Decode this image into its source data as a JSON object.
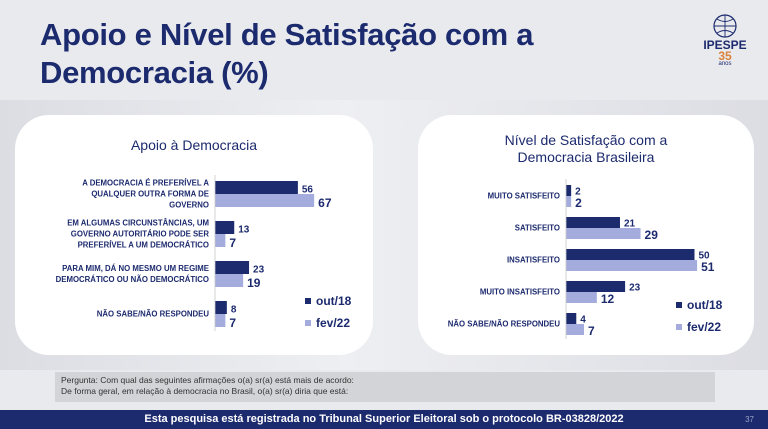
{
  "header": {
    "title_line1": "Apoio e Nível de Satisfação com a",
    "title_line2": "Democracia (%)"
  },
  "logo": {
    "text": "IPESPE",
    "number": "35",
    "sub": "anos"
  },
  "colors": {
    "series1": "#1c2a6e",
    "series2": "#a3acdc",
    "title": "#1c2a6e"
  },
  "chart_data": [
    {
      "type": "bar",
      "orientation": "horizontal",
      "title": "Apoio à Democracia",
      "categories": [
        [
          "A DEMOCRACIA É PREFERÍVEL A",
          "QUALQUER OUTRA FORMA DE",
          "GOVERNO"
        ],
        [
          "EM ALGUMAS CIRCUNSTÂNCIAS, UM",
          "GOVERNO AUTORITÁRIO PODE SER",
          "PREFERÍVEL A UM DEMOCRÁTICO"
        ],
        [
          "PARA MIM, DÁ NO MESMO UM REGIME",
          "DEMOCRÁTICO OU NÃO DEMOCRÁTICO"
        ],
        [
          "NÃO SABE/NÃO RESPONDEU"
        ]
      ],
      "series": [
        {
          "name": "out/18",
          "values": [
            56,
            13,
            23,
            8
          ]
        },
        {
          "name": "fev/22",
          "values": [
            67,
            7,
            19,
            7
          ]
        }
      ],
      "legend": "bottom-right"
    },
    {
      "type": "bar",
      "orientation": "horizontal",
      "title_line1": "Nível de Satisfação com a",
      "title_line2": "Democracia Brasileira",
      "categories": [
        [
          "MUITO SATISFEITO"
        ],
        [
          "SATISFEITO"
        ],
        [
          "INSATISFEITO"
        ],
        [
          "MUITO INSATISFEITO"
        ],
        [
          "NÃO SABE/NÃO RESPONDEU"
        ]
      ],
      "series": [
        {
          "name": "out/18",
          "values": [
            2,
            21,
            50,
            23,
            4
          ]
        },
        {
          "name": "fev/22",
          "values": [
            2,
            29,
            51,
            12,
            7
          ]
        }
      ],
      "legend": "bottom-right"
    }
  ],
  "note": {
    "line1": "Pergunta: Com qual das seguintes afirmações o(a) sr(a) está mais de acordo:",
    "line2": "De forma geral, em relação à democracia no Brasil, o(a) sr(a) diria que está:"
  },
  "footer": {
    "text": "Esta pesquisa está registrada no Tribunal Superior Eleitoral sob o protocolo BR-03828/2022",
    "page": "37"
  }
}
